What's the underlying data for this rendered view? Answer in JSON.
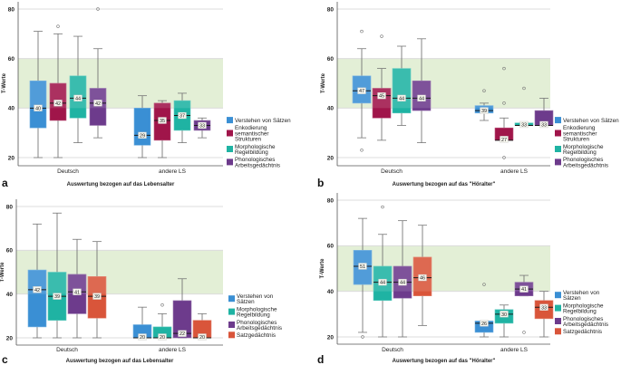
{
  "chart_data": [
    {
      "type": "boxplot",
      "panel_label": "a",
      "xlabel": "Auswertung bezogen auf das Lebensalter",
      "ylabel": "T-Werte",
      "ylim": [
        17,
        82
      ],
      "yticks": [
        20,
        40,
        60,
        80
      ],
      "reference_band": [
        40,
        60
      ],
      "categories": [
        "Deutsch",
        "andere LS"
      ],
      "legend_position": "right",
      "series": [
        {
          "name": "Verstehen von Sätzen",
          "color": "#3a8fd4",
          "boxes": [
            {
              "min": 20,
              "q1": 32,
              "median": 40,
              "q3": 51,
              "max": 71,
              "label": "40",
              "outliers": []
            },
            {
              "min": 20,
              "q1": 25,
              "median": 29,
              "q3": 40,
              "max": 45,
              "label": "29",
              "outliers": []
            }
          ]
        },
        {
          "name": "Enkodierung semantischer Strukturen",
          "color": "#a0154a",
          "boxes": [
            {
              "min": 20,
              "q1": 35,
              "median": 42,
              "q3": 50,
              "max": 70,
              "label": "42",
              "outliers": [
                73
              ]
            },
            {
              "min": 20,
              "q1": 27,
              "median": 35,
              "q3": 42,
              "max": 43,
              "label": "35",
              "outliers": []
            }
          ]
        },
        {
          "name": "Morphologische Regelbildung",
          "color": "#1fb3a3",
          "boxes": [
            {
              "min": 26,
              "q1": 36,
              "median": 44,
              "q3": 53,
              "max": 69,
              "label": "44",
              "outliers": []
            },
            {
              "min": 26,
              "q1": 31,
              "median": 37,
              "q3": 43,
              "max": 46,
              "label": "37",
              "outliers": []
            }
          ]
        },
        {
          "name": "Phonologisches Arbeitsgedächtnis",
          "color": "#6d3b8c",
          "boxes": [
            {
              "min": 28,
              "q1": 33,
              "median": 42,
              "q3": 48,
              "max": 64,
              "label": "42",
              "outliers": [
                80
              ]
            },
            {
              "min": 28,
              "q1": 31,
              "median": 33,
              "q3": 35,
              "max": 36,
              "label": "33",
              "outliers": []
            }
          ]
        }
      ]
    },
    {
      "type": "boxplot",
      "panel_label": "b",
      "xlabel": "Auswertung bezogen auf das \"Höralter\"",
      "ylabel": "T-Werte",
      "ylim": [
        17,
        82
      ],
      "yticks": [
        20,
        40,
        60,
        80
      ],
      "reference_band": [
        40,
        60
      ],
      "categories": [
        "Deutsch",
        "andere LS"
      ],
      "legend_position": "right",
      "series": [
        {
          "name": "Verstehen von Sätzen",
          "color": "#3a8fd4",
          "boxes": [
            {
              "min": 28,
              "q1": 42,
              "median": 47,
              "q3": 53,
              "max": 64,
              "label": "47",
              "outliers": [
                71,
                23
              ]
            },
            {
              "min": 35,
              "q1": 38,
              "median": 39,
              "q3": 41,
              "max": 42,
              "label": "39",
              "outliers": [
                47
              ]
            }
          ]
        },
        {
          "name": "Enkodierung semantischer Strukturen",
          "color": "#a0154a",
          "boxes": [
            {
              "min": 27,
              "q1": 36,
              "median": 45,
              "q3": 48,
              "max": 56,
              "label": "45",
              "outliers": [
                69
              ]
            },
            {
              "min": 27,
              "q1": 27,
              "median": 27,
              "q3": 32,
              "max": 36,
              "label": "27",
              "outliers": [
                56,
                42,
                20
              ]
            }
          ]
        },
        {
          "name": "Morphologische Regelbildung",
          "color": "#1fb3a3",
          "boxes": [
            {
              "min": 33,
              "q1": 38,
              "median": 44,
              "q3": 56,
              "max": 65,
              "label": "44",
              "outliers": []
            },
            {
              "min": 33,
              "q1": 33,
              "median": 33,
              "q3": 34,
              "max": 34,
              "label": "33",
              "outliers": [
                48
              ]
            }
          ]
        },
        {
          "name": "Phonologisches Arbeitsgedächtnis",
          "color": "#6d3b8c",
          "boxes": [
            {
              "min": 26,
              "q1": 39,
              "median": 44,
              "q3": 51,
              "max": 68,
              "label": "44",
              "outliers": []
            },
            {
              "min": 33,
              "q1": 33,
              "median": 33,
              "q3": 39,
              "max": 44,
              "label": "33",
              "outliers": []
            }
          ]
        }
      ]
    },
    {
      "type": "boxplot",
      "panel_label": "c",
      "xlabel": "Auswertung bezogen auf das Lebensalter",
      "ylabel": "T-Werte",
      "ylim": [
        17,
        82
      ],
      "yticks": [
        20,
        40,
        60,
        80
      ],
      "reference_band": [
        40,
        60
      ],
      "categories": [
        "Deutsch",
        "andere LS"
      ],
      "legend_position": "right",
      "series": [
        {
          "name": "Verstehen von Sätzen",
          "color": "#3a8fd4",
          "boxes": [
            {
              "min": 20,
              "q1": 25,
              "median": 42,
              "q3": 51,
              "max": 72,
              "label": "42",
              "outliers": []
            },
            {
              "min": 20,
              "q1": 20,
              "median": 20,
              "q3": 26,
              "max": 34,
              "label": "20",
              "outliers": []
            }
          ]
        },
        {
          "name": "Morphologische Regelbildung",
          "color": "#1fb3a3",
          "boxes": [
            {
              "min": 20,
              "q1": 28,
              "median": 39,
              "q3": 50,
              "max": 77,
              "label": "39",
              "outliers": []
            },
            {
              "min": 20,
              "q1": 20,
              "median": 20,
              "q3": 25,
              "max": 31,
              "label": "20",
              "outliers": [
                35
              ]
            }
          ]
        },
        {
          "name": "Phonologisches Arbeitsgedächtnis",
          "color": "#6d3b8c",
          "boxes": [
            {
              "min": 20,
              "q1": 31,
              "median": 41,
              "q3": 49,
              "max": 65,
              "label": "41",
              "outliers": []
            },
            {
              "min": 20,
              "q1": 20,
              "median": 22,
              "q3": 37,
              "max": 47,
              "label": "22",
              "outliers": []
            }
          ]
        },
        {
          "name": "Satzgedächtnis",
          "color": "#d9553a",
          "boxes": [
            {
              "min": 20,
              "q1": 29,
              "median": 39,
              "q3": 48,
              "max": 64,
              "label": "39",
              "outliers": []
            },
            {
              "min": 20,
              "q1": 20,
              "median": 20,
              "q3": 28,
              "max": 31,
              "label": "20",
              "outliers": []
            }
          ]
        }
      ]
    },
    {
      "type": "boxplot",
      "panel_label": "d",
      "xlabel": "Auswertung bezogen auf das \"Höralter\"",
      "ylabel": "T-Werte",
      "ylim": [
        17,
        82
      ],
      "yticks": [
        20,
        40,
        60,
        80
      ],
      "reference_band": [
        40,
        60
      ],
      "categories": [
        "Deutsch",
        "andere LS"
      ],
      "legend_position": "right",
      "series": [
        {
          "name": "Verstehen von Sätzen",
          "color": "#3a8fd4",
          "boxes": [
            {
              "min": 22,
              "q1": 43,
              "median": 51,
              "q3": 58,
              "max": 72,
              "label": "51",
              "outliers": [
                20
              ]
            },
            {
              "min": 20,
              "q1": 22,
              "median": 26,
              "q3": 27,
              "max": 27,
              "label": "26",
              "outliers": [
                43
              ]
            }
          ]
        },
        {
          "name": "Morphologische Regelbildung",
          "color": "#1fb3a3",
          "boxes": [
            {
              "min": 20,
              "q1": 36,
              "median": 44,
              "q3": 51,
              "max": 65,
              "label": "44",
              "outliers": [
                77
              ]
            },
            {
              "min": 20,
              "q1": 26,
              "median": 30,
              "q3": 32,
              "max": 34,
              "label": "30",
              "outliers": []
            }
          ]
        },
        {
          "name": "Phonologisches Arbeitsgedächtnis",
          "color": "#6d3b8c",
          "boxes": [
            {
              "min": 20,
              "q1": 37,
              "median": 44,
              "q3": 51,
              "max": 71,
              "label": "44",
              "outliers": []
            },
            {
              "min": 38,
              "q1": 38,
              "median": 41,
              "q3": 44,
              "max": 47,
              "label": "41",
              "outliers": [
                22
              ]
            }
          ]
        },
        {
          "name": "Satzgedächtnis",
          "color": "#d9553a",
          "boxes": [
            {
              "min": 25,
              "q1": 38,
              "median": 46,
              "q3": 55,
              "max": 69,
              "label": "46",
              "outliers": []
            },
            {
              "min": 20,
              "q1": 28,
              "median": 33,
              "q3": 36,
              "max": 40,
              "label": "33",
              "outliers": []
            }
          ]
        }
      ]
    }
  ]
}
